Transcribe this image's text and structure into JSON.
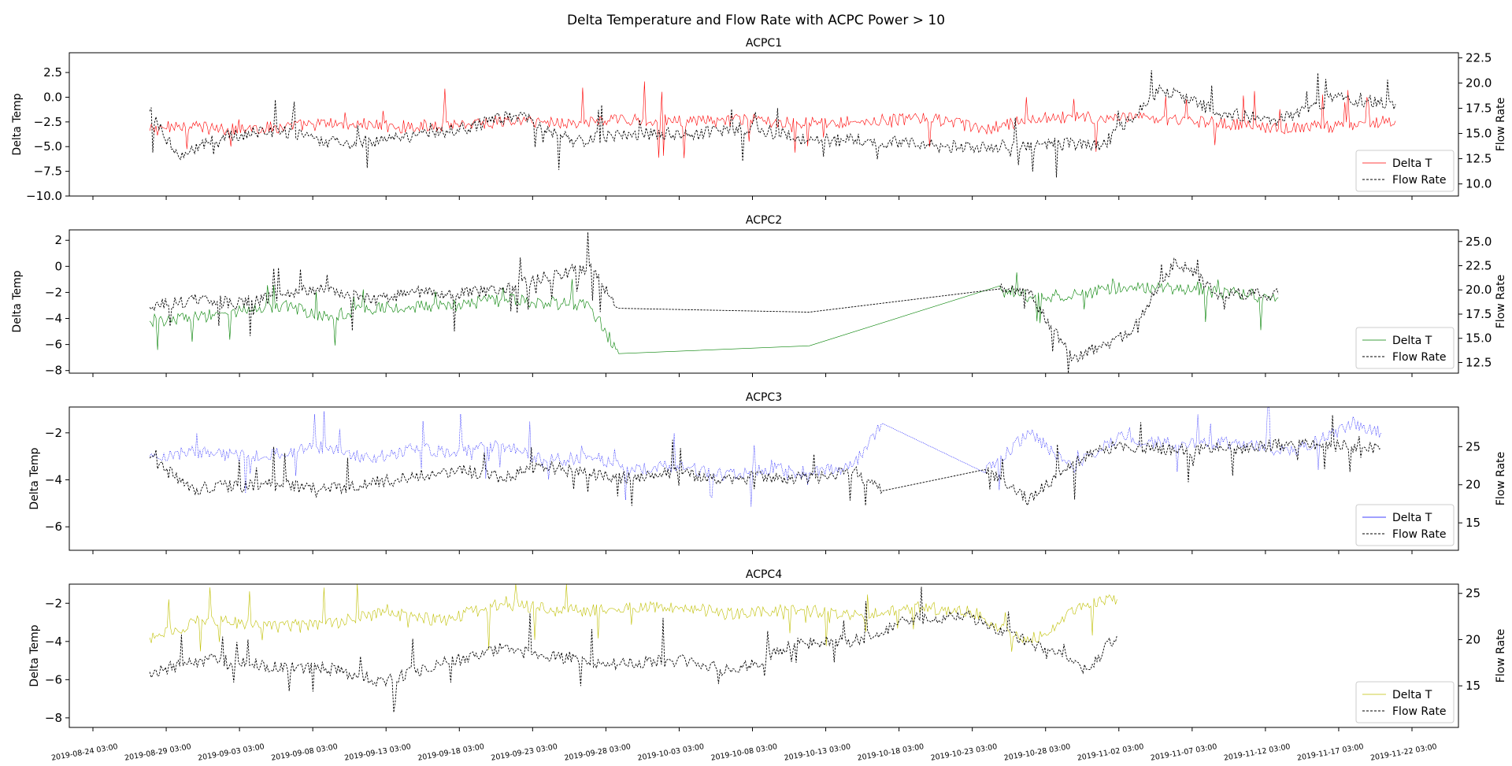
{
  "figure": {
    "suptitle": "Delta Temperature and Flow Rate with ACPC Power > 10"
  },
  "x_ticks": [
    "2019-08-24 03:00",
    "2019-08-29 03:00",
    "2019-09-03 03:00",
    "2019-09-08 03:00",
    "2019-09-13 03:00",
    "2019-09-18 03:00",
    "2019-09-23 03:00",
    "2019-09-28 03:00",
    "2019-10-03 03:00",
    "2019-10-08 03:00",
    "2019-10-13 03:00",
    "2019-10-18 03:00",
    "2019-10-23 03:00",
    "2019-10-28 03:00",
    "2019-11-02 03:00",
    "2019-11-07 03:00",
    "2019-11-12 03:00",
    "2019-11-17 03:00",
    "2019-11-22 03:00"
  ],
  "chart_data": [
    {
      "type": "line",
      "title": "ACPC1",
      "ylabel": "Delta Temp",
      "y2label": "Flow Rate",
      "ylim": [
        -10.0,
        4.5
      ],
      "y2lim": [
        8.8,
        23.0
      ],
      "yticks": [
        "2.5",
        "0.0",
        "−2.5",
        "−5.0",
        "−7.5",
        "−10.0"
      ],
      "y2ticks": [
        "22.5",
        "20.0",
        "17.5",
        "15.0",
        "12.5",
        "10.0"
      ],
      "x_range": [
        "2019-08-28",
        "2019-11-21"
      ],
      "colors": {
        "delta": "#ff0000",
        "flow": "#000000"
      },
      "series": [
        {
          "name": "Delta T",
          "axis": "left",
          "style": "solid",
          "x": [
            "2019-08-28",
            "2019-08-30",
            "2019-09-02",
            "2019-09-06",
            "2019-09-10",
            "2019-09-14",
            "2019-09-18",
            "2019-09-22",
            "2019-09-26",
            "2019-09-30",
            "2019-10-04",
            "2019-10-08",
            "2019-10-12",
            "2019-10-16",
            "2019-10-20",
            "2019-10-24",
            "2019-10-28",
            "2019-11-01",
            "2019-11-05",
            "2019-11-09",
            "2019-11-13",
            "2019-11-17",
            "2019-11-21"
          ],
          "values": [
            -3.4,
            -2.8,
            -3.3,
            -3.0,
            -2.6,
            -3.0,
            -2.7,
            -2.4,
            -2.6,
            -2.2,
            -2.5,
            -2.3,
            -2.6,
            -2.4,
            -2.1,
            -3.3,
            -2.0,
            -2.1,
            -2.3,
            -2.6,
            -3.2,
            -2.9,
            -2.4
          ]
        },
        {
          "name": "Flow Rate",
          "axis": "right",
          "style": "dashed",
          "x": [
            "2019-08-28",
            "2019-08-30",
            "2019-09-02",
            "2019-09-06",
            "2019-09-10",
            "2019-09-14",
            "2019-09-18",
            "2019-09-22",
            "2019-09-26",
            "2019-09-30",
            "2019-10-04",
            "2019-10-08",
            "2019-10-12",
            "2019-10-16",
            "2019-10-20",
            "2019-10-24",
            "2019-10-28",
            "2019-11-01",
            "2019-11-05",
            "2019-11-09",
            "2019-11-13",
            "2019-11-17",
            "2019-11-21"
          ],
          "values": [
            17.2,
            12.6,
            14.8,
            15.2,
            13.9,
            14.6,
            15.4,
            16.8,
            14.2,
            15.0,
            14.9,
            15.6,
            14.3,
            14.4,
            13.8,
            13.6,
            14.0,
            13.8,
            19.5,
            17.0,
            16.3,
            18.6,
            17.9
          ]
        }
      ],
      "legend": [
        "Delta T",
        "Flow Rate"
      ],
      "legend_loc": "lower right"
    },
    {
      "type": "line",
      "title": "ACPC2",
      "ylabel": "Delta Temp",
      "y2label": "Flow Rate",
      "ylim": [
        -8.2,
        2.8
      ],
      "y2lim": [
        11.4,
        26.2
      ],
      "yticks": [
        "2",
        "0",
        "−2",
        "−4",
        "−6",
        "−8"
      ],
      "y2ticks": [
        "25.0",
        "22.5",
        "20.0",
        "17.5",
        "15.0",
        "12.5"
      ],
      "x_range": [
        "2019-08-28",
        "2019-11-13"
      ],
      "colors": {
        "delta": "#008000",
        "flow": "#000000"
      },
      "series": [
        {
          "name": "Delta T",
          "axis": "left",
          "style": "solid",
          "x": [
            "2019-08-28",
            "2019-08-31",
            "2019-09-03",
            "2019-09-06",
            "2019-09-09",
            "2019-09-12",
            "2019-09-15",
            "2019-09-18",
            "2019-09-21",
            "2019-09-24",
            "2019-09-27",
            "2019-09-29",
            "2019-10-12",
            "2019-10-25",
            "2019-10-27",
            "2019-10-30",
            "2019-11-03",
            "2019-11-06",
            "2019-11-09",
            "2019-11-13"
          ],
          "values": [
            -4.2,
            -3.9,
            -3.5,
            -3.0,
            -3.8,
            -3.3,
            -3.1,
            -3.0,
            -2.5,
            -2.8,
            -3.0,
            -6.7,
            -6.1,
            -1.5,
            -2.4,
            -2.2,
            -1.5,
            -1.8,
            -2.0,
            -2.4
          ]
        },
        {
          "name": "Flow Rate",
          "axis": "right",
          "style": "dashed",
          "x": [
            "2019-08-28",
            "2019-08-31",
            "2019-09-03",
            "2019-09-06",
            "2019-09-09",
            "2019-09-12",
            "2019-09-15",
            "2019-09-18",
            "2019-09-21",
            "2019-09-24",
            "2019-09-27",
            "2019-09-29",
            "2019-10-12",
            "2019-10-25",
            "2019-10-27",
            "2019-10-30",
            "2019-11-03",
            "2019-11-06",
            "2019-11-09",
            "2019-11-13"
          ],
          "values": [
            18.2,
            19.0,
            18.6,
            19.4,
            20.2,
            18.9,
            19.8,
            19.6,
            20.0,
            21.4,
            22.4,
            18.1,
            17.7,
            20.1,
            19.6,
            12.9,
            15.6,
            23.1,
            19.6,
            19.6
          ]
        }
      ],
      "legend": [
        "Delta T",
        "Flow Rate"
      ],
      "legend_loc": "lower right"
    },
    {
      "type": "line",
      "title": "ACPC3",
      "ylabel": "Delta Temp",
      "y2label": "Flow Rate",
      "ylim": [
        -7.0,
        -0.9
      ],
      "y2lim": [
        11.4,
        30.2
      ],
      "yticks": [
        "−2",
        "−4",
        "−6"
      ],
      "y2ticks": [
        "25",
        "20",
        "15"
      ],
      "x_range": [
        "2019-08-28",
        "2019-11-20"
      ],
      "colors": {
        "delta": "#0000ff",
        "flow": "#000000"
      },
      "series": [
        {
          "name": "Delta T",
          "axis": "left",
          "style": "dotted",
          "x": [
            "2019-08-28",
            "2019-08-31",
            "2019-09-03",
            "2019-09-06",
            "2019-09-09",
            "2019-09-12",
            "2019-09-15",
            "2019-09-18",
            "2019-09-21",
            "2019-09-24",
            "2019-09-27",
            "2019-09-30",
            "2019-10-03",
            "2019-10-06",
            "2019-10-09",
            "2019-10-12",
            "2019-10-15",
            "2019-10-17",
            "2019-10-24",
            "2019-10-27",
            "2019-10-30",
            "2019-11-02",
            "2019-11-06",
            "2019-11-10",
            "2019-11-14",
            "2019-11-18",
            "2019-11-20"
          ],
          "values": [
            -3.0,
            -2.8,
            -3.0,
            -2.9,
            -2.6,
            -3.1,
            -2.7,
            -2.8,
            -2.5,
            -3.2,
            -3.0,
            -3.6,
            -3.4,
            -3.8,
            -3.5,
            -3.7,
            -3.4,
            -1.6,
            -3.7,
            -2.0,
            -3.5,
            -2.2,
            -2.5,
            -2.4,
            -2.8,
            -1.7,
            -2.0
          ]
        },
        {
          "name": "Flow Rate",
          "axis": "right",
          "style": "dashed",
          "x": [
            "2019-08-28",
            "2019-08-31",
            "2019-09-03",
            "2019-09-06",
            "2019-09-09",
            "2019-09-12",
            "2019-09-15",
            "2019-09-18",
            "2019-09-21",
            "2019-09-24",
            "2019-09-27",
            "2019-09-30",
            "2019-10-03",
            "2019-10-06",
            "2019-10-09",
            "2019-10-12",
            "2019-10-15",
            "2019-10-17",
            "2019-10-24",
            "2019-10-27",
            "2019-10-30",
            "2019-11-02",
            "2019-11-06",
            "2019-11-10",
            "2019-11-14",
            "2019-11-18",
            "2019-11-20"
          ],
          "values": [
            23.5,
            19.5,
            19.8,
            20.0,
            19.3,
            20.2,
            21.0,
            22.0,
            21.0,
            22.3,
            21.5,
            20.8,
            21.6,
            20.5,
            21.2,
            20.7,
            21.8,
            19.2,
            22.0,
            18.0,
            23.0,
            25.2,
            24.5,
            24.8,
            25.3,
            25.0,
            24.8
          ]
        }
      ],
      "legend": [
        "Delta T",
        "Flow Rate"
      ],
      "legend_loc": "lower right"
    },
    {
      "type": "line",
      "title": "ACPC4",
      "ylabel": "Delta Temp",
      "y2label": "Flow Rate",
      "ylim": [
        -8.5,
        -1.0
      ],
      "y2lim": [
        10.5,
        26.0
      ],
      "yticks": [
        "−2",
        "−4",
        "−6",
        "−8"
      ],
      "y2ticks": [
        "25",
        "20",
        "15"
      ],
      "x_range": [
        "2019-08-28",
        "2019-11-02"
      ],
      "colors": {
        "delta": "#bfbf00",
        "flow": "#000000"
      },
      "series": [
        {
          "name": "Delta T",
          "axis": "left",
          "style": "solid",
          "x": [
            "2019-08-28",
            "2019-09-01",
            "2019-09-05",
            "2019-09-09",
            "2019-09-13",
            "2019-09-17",
            "2019-09-21",
            "2019-09-25",
            "2019-09-29",
            "2019-10-03",
            "2019-10-07",
            "2019-10-11",
            "2019-10-15",
            "2019-10-19",
            "2019-10-23",
            "2019-10-27",
            "2019-10-31",
            "2019-11-02"
          ],
          "values": [
            -3.8,
            -2.8,
            -3.2,
            -3.1,
            -2.5,
            -2.9,
            -2.0,
            -2.4,
            -2.3,
            -2.2,
            -2.6,
            -2.3,
            -2.7,
            -2.2,
            -2.4,
            -4.0,
            -2.0,
            -1.8
          ]
        },
        {
          "name": "Flow Rate",
          "axis": "right",
          "style": "dashed",
          "x": [
            "2019-08-28",
            "2019-09-01",
            "2019-09-05",
            "2019-09-09",
            "2019-09-13",
            "2019-09-17",
            "2019-09-21",
            "2019-09-25",
            "2019-09-29",
            "2019-10-03",
            "2019-10-07",
            "2019-10-11",
            "2019-10-15",
            "2019-10-19",
            "2019-10-23",
            "2019-10-27",
            "2019-10-31",
            "2019-11-02"
          ],
          "values": [
            16.5,
            17.8,
            17.2,
            16.9,
            15.5,
            17.4,
            19.0,
            18.0,
            17.3,
            17.8,
            16.5,
            19.6,
            19.8,
            22.3,
            22.4,
            19.8,
            16.8,
            20.5
          ]
        }
      ],
      "legend": [
        "Delta T",
        "Flow Rate"
      ],
      "legend_loc": "lower right"
    }
  ]
}
